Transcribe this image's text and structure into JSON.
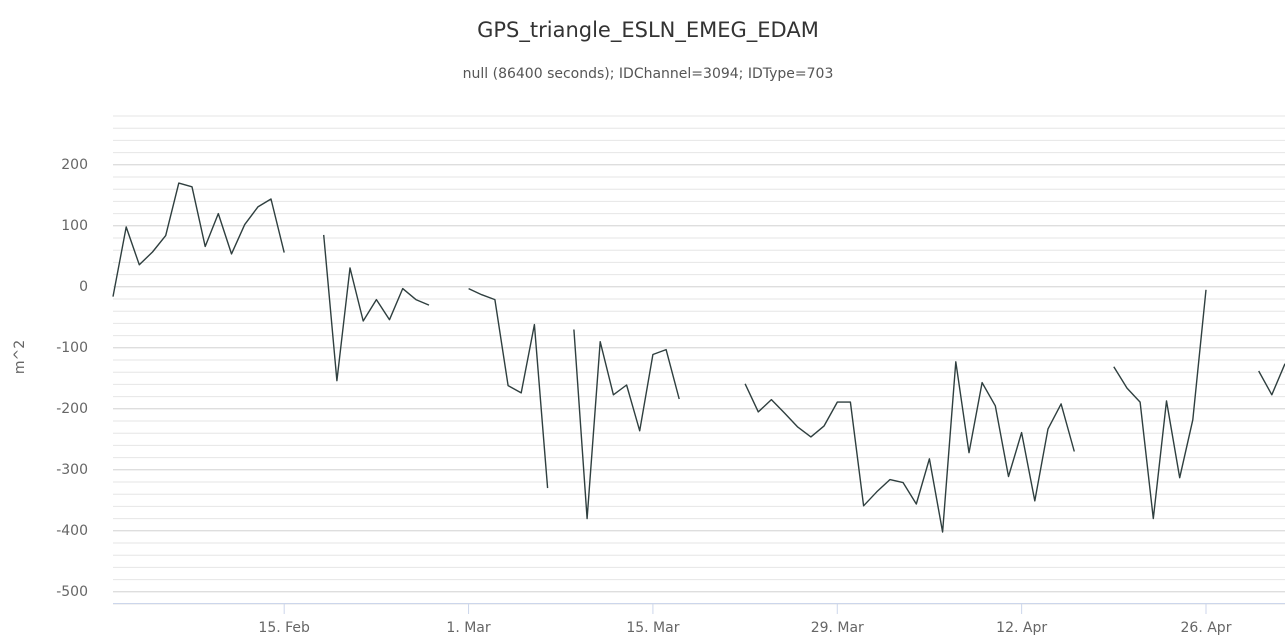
{
  "chart_data": {
    "type": "line",
    "title": "GPS_triangle_ESLN_EMEG_EDAM",
    "subtitle": "null (86400 seconds); IDChannel=3094; IDType=703",
    "y_label": "m^2",
    "x": [
      "2. Feb",
      "3. Feb",
      "4. Feb",
      "5. Feb",
      "6. Feb",
      "7. Feb",
      "8. Feb",
      "9. Feb",
      "10. Feb",
      "11. Feb",
      "12. Feb",
      "13. Feb",
      "14. Feb",
      "15. Feb",
      "16. Feb",
      "17. Feb",
      "18. Feb",
      "19. Feb",
      "20. Feb",
      "21. Feb",
      "22. Feb",
      "23. Feb",
      "24. Feb",
      "25. Feb",
      "26. Feb",
      "27. Feb",
      "28. Feb",
      "1. Mar",
      "2. Mar",
      "3. Mar",
      "4. Mar",
      "5. Mar",
      "6. Mar",
      "7. Mar",
      "8. Mar",
      "9. Mar",
      "10. Mar",
      "11. Mar",
      "12. Mar",
      "13. Mar",
      "14. Mar",
      "15. Mar",
      "16. Mar",
      "17. Mar",
      "18. Mar",
      "19. Mar",
      "20. Mar",
      "21. Mar",
      "22. Mar",
      "23. Mar",
      "24. Mar",
      "25. Mar",
      "26. Mar",
      "27. Mar",
      "28. Mar",
      "29. Mar",
      "30. Mar",
      "31. Mar",
      "1. Apr",
      "2. Apr",
      "3. Apr",
      "4. Apr",
      "5. Apr",
      "6. Apr",
      "7. Apr",
      "8. Apr",
      "9. Apr",
      "10. Apr",
      "11. Apr",
      "12. Apr",
      "13. Apr",
      "14. Apr",
      "15. Apr",
      "16. Apr",
      "17. Apr",
      "18. Apr",
      "19. Apr",
      "20. Apr",
      "21. Apr",
      "22. Apr",
      "23. Apr",
      "24. Apr",
      "25. Apr",
      "26. Apr",
      "27. Apr",
      "28. Apr",
      "29. Apr",
      "30. Apr",
      "1. May",
      "2. May"
    ],
    "values": [
      -16,
      98,
      36,
      57,
      84,
      170,
      164,
      66,
      120,
      54,
      102,
      131,
      144,
      56,
      null,
      null,
      85,
      -154,
      31,
      -56,
      -21,
      -54,
      -3,
      -21,
      -30,
      null,
      null,
      -3,
      -13,
      -21,
      -162,
      -174,
      -62,
      -330,
      null,
      -70,
      -380,
      -90,
      -177,
      -161,
      -236,
      -111,
      -103,
      -184,
      null,
      null,
      null,
      null,
      -159,
      -205,
      -185,
      -207,
      -230,
      -246,
      -228,
      -189,
      -189,
      -359,
      -336,
      -316,
      -321,
      -356,
      -282,
      -402,
      -123,
      -272,
      -157,
      -195,
      -311,
      -239,
      -351,
      -233,
      -192,
      -270,
      null,
      null,
      -131,
      -166,
      -189,
      -380,
      -187,
      -313,
      -218,
      -5,
      null,
      null,
      null,
      -138,
      -177,
      -126
    ],
    "color": "#2f3f3f",
    "xlim": [
      "2. Feb",
      "2. May"
    ],
    "xticks": [
      "15. Feb",
      "1. Mar",
      "15. Mar",
      "29. Mar",
      "12. Apr",
      "26. Apr"
    ],
    "ylim": [
      -520,
      280
    ],
    "yticks": [
      -500,
      -400,
      -300,
      -200,
      -100,
      0,
      100,
      200
    ],
    "grid": true,
    "minor_grid_interval": 20
  }
}
